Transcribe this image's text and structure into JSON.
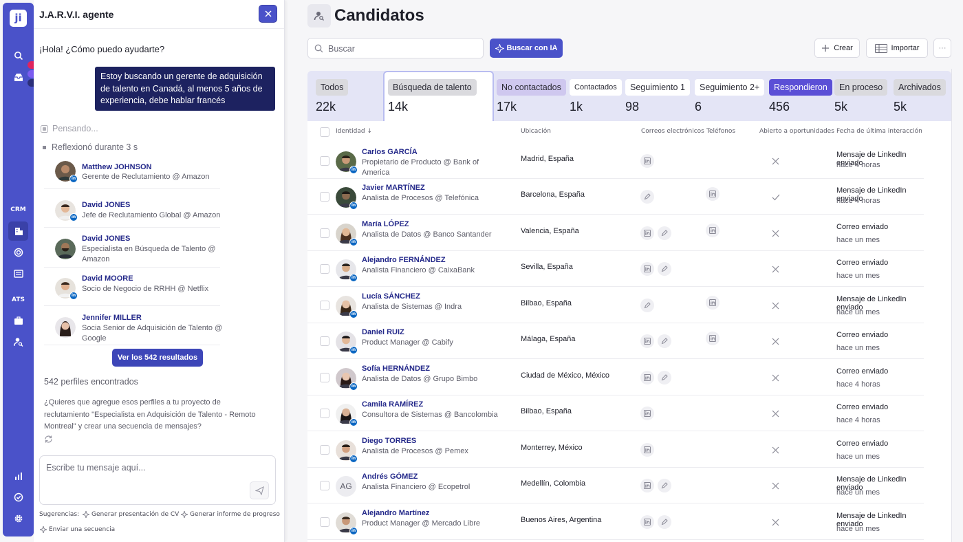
{
  "colors": {
    "brand": "#4a52c9",
    "dark_bubble": "#1d2260",
    "name_link": "#24298a",
    "responded_tab": "#5b4fd6",
    "not_contacted_tab": "#cfc8ef"
  },
  "rail": {
    "logo": "ji",
    "badges": [
      "1",
      "2",
      "25"
    ],
    "crm_label": "CRM",
    "ats_label": "ATS",
    "icons": [
      "search-icon",
      "inbox-icon",
      "crm-building-icon",
      "target-icon",
      "list-icon",
      "briefcase-icon",
      "user-search-icon",
      "chart-icon",
      "settings-check-icon",
      "gear-icon"
    ]
  },
  "chat": {
    "title": "J.A.R.V.I. agente",
    "greeting": "¡Hola! ¿Cómo puedo ayudarte?",
    "user_message": "Estoy buscando un gerente de adquisición de talento en Canadá, al menos 5 años de experiencia, debe hablar francés",
    "thinking": "Pensando...",
    "reflected": "Reflexionó durante 3 s",
    "profiles": [
      {
        "name": "Matthew JOHNSON",
        "role": "Gerente de Reclutamiento @ Amazon"
      },
      {
        "name": "David JONES",
        "role": "Jefe de Reclutamiento Global @ Amazon"
      },
      {
        "name": "David JONES",
        "role": "Especialista en Búsqueda de Talento @ Amazon"
      },
      {
        "name": "David MOORE",
        "role": "Socio de Negocio de RRHH @ Netflix"
      },
      {
        "name": "Jennifer MILLER",
        "role": "Socia Senior de Adquisición de Talento @ Google"
      }
    ],
    "view_all": "Ver los 542 resultados",
    "found": "542 perfiles encontrados",
    "question": "¿Quieres que agregue esos perfiles a tu proyecto de reclutamiento \"Especialista en Adquisición de Talento - Remoto Montreal\" y crear una secuencia de mensajes?",
    "input_placeholder": "Escribe tu mensaje aquí...",
    "suggestions_label": "Sugerencias:",
    "suggestions": [
      "Generar presentación de CV",
      "Generar informe de progreso",
      "Enviar una secuencia"
    ]
  },
  "main": {
    "title": "Candidatos",
    "search_placeholder": "Buscar",
    "ai_button": "Buscar con IA",
    "create_button": "Crear",
    "import_button": "Importar",
    "more_button": "···",
    "tabs": [
      {
        "label": "Todos",
        "value": "22k"
      },
      {
        "label": "Búsqueda de talento",
        "value": "14k"
      },
      {
        "label": "No contactados",
        "value": "17k"
      },
      {
        "label": "Contactados",
        "value": "1k"
      },
      {
        "label": "Seguimiento 1",
        "value": "98"
      },
      {
        "label": "Seguimiento 2+",
        "value": "6"
      },
      {
        "label": "Respondieron",
        "value": "456"
      },
      {
        "label": "En proceso",
        "value": "5k"
      },
      {
        "label": "Archivados",
        "value": "5k"
      }
    ],
    "columns": [
      "Identidad ↓",
      "Ubicación",
      "Correos electrónicos",
      "Teléfonos",
      "Abierto a oportunidades",
      "Fecha de última interacción"
    ],
    "rows": [
      {
        "name": "Carlos GARCÍA",
        "role": "Propietario de Producto @ Bank of America",
        "location": "Madrid, España",
        "emails": [
          "linkedin-icon"
        ],
        "phones": [],
        "open": "x-icon",
        "last": "Mensaje de LinkedIn enviado",
        "when": "hace 4 horas"
      },
      {
        "name": "Javier MARTÍNEZ",
        "role": "Analista de Procesos @ Telefónica",
        "location": "Barcelona, España",
        "emails": [
          "pencil-icon"
        ],
        "phones": [
          "linkedin-icon"
        ],
        "open": "check-icon",
        "last": "Mensaje de LinkedIn enviado",
        "when": "hace 4 horas"
      },
      {
        "name": "María LÓPEZ",
        "role": "Analista de Datos @ Banco Santander",
        "location": "Valencia, España",
        "emails": [
          "linkedin-icon",
          "pencil-icon"
        ],
        "phones": [
          "linkedin-icon"
        ],
        "open": "x-icon",
        "last": "Correo enviado",
        "when": "hace un mes"
      },
      {
        "name": "Alejandro FERNÁNDEZ",
        "role": "Analista Financiero @ CaixaBank",
        "location": "Sevilla, España",
        "emails": [
          "linkedin-icon",
          "pencil-icon"
        ],
        "phones": [],
        "open": "x-icon",
        "last": "Correo enviado",
        "when": "hace un mes"
      },
      {
        "name": "Lucía SÁNCHEZ",
        "role": "Analista de Sistemas @ Indra",
        "location": "Bilbao, España",
        "emails": [
          "pencil-icon"
        ],
        "phones": [
          "linkedin-icon"
        ],
        "open": "x-icon",
        "last": "Mensaje de LinkedIn enviado",
        "when": "hace un mes"
      },
      {
        "name": "Daniel RUIZ",
        "role": "Product Manager @ Cabify",
        "location": "Málaga, España",
        "emails": [
          "linkedin-icon",
          "pencil-icon"
        ],
        "phones": [
          "linkedin-icon"
        ],
        "open": "x-icon",
        "last": "Correo enviado",
        "when": "hace un mes"
      },
      {
        "name": "Sofía HERNÁNDEZ",
        "role": "Analista de Datos @ Grupo Bimbo",
        "location": "Ciudad de México, México",
        "emails": [
          "linkedin-icon",
          "pencil-icon"
        ],
        "phones": [],
        "open": "x-icon",
        "last": "Correo enviado",
        "when": "hace 4 horas"
      },
      {
        "name": "Camila RAMÍREZ",
        "role": "Consultora de Sistemas @ Bancolombia",
        "location": "Bilbao, España",
        "emails": [
          "linkedin-icon"
        ],
        "phones": [],
        "open": "x-icon",
        "last": "Correo enviado",
        "when": "hace 4 horas"
      },
      {
        "name": "Diego TORRES",
        "role": "Analista de Procesos @ Pemex",
        "location": "Monterrey, México",
        "emails": [
          "linkedin-icon"
        ],
        "phones": [],
        "open": "x-icon",
        "last": "Correo enviado",
        "when": "hace un mes"
      },
      {
        "name": "Andrés GÓMEZ",
        "role": "Analista Financiero @ Ecopetrol",
        "location": "Medellín, Colombia",
        "initials": "AG",
        "emails": [
          "linkedin-icon",
          "pencil-icon"
        ],
        "phones": [],
        "open": "x-icon",
        "last": "Mensaje de LinkedIn enviado",
        "when": "hace un mes"
      },
      {
        "name": "Alejandro Martínez",
        "role": "Product Manager @ Mercado Libre",
        "location": "Buenos Aires, Argentina",
        "emails": [
          "linkedin-icon",
          "pencil-icon"
        ],
        "phones": [],
        "open": "x-icon",
        "last": "Mensaje de LinkedIn enviado",
        "when": "hace un mes"
      }
    ]
  }
}
